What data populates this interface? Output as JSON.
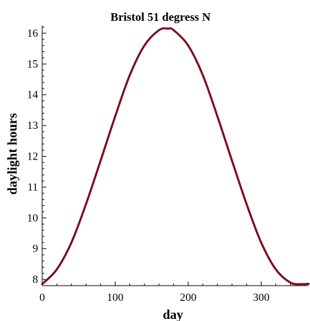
{
  "chart_data": {
    "type": "line",
    "title": "Bristol 51 degress N",
    "xlabel": "day",
    "ylabel": "daylight hours",
    "xlim": [
      0,
      365
    ],
    "ylim": [
      7.8,
      16.2
    ],
    "x_ticks": [
      0,
      100,
      200,
      300
    ],
    "y_ticks": [
      8,
      9,
      10,
      11,
      12,
      13,
      14,
      15,
      16
    ],
    "grid": false,
    "series": [
      {
        "color": "#7a0d1c",
        "x": [
          0,
          20,
          40,
          60,
          80,
          100,
          120,
          140,
          160,
          172,
          180,
          200,
          220,
          240,
          260,
          280,
          300,
          320,
          340,
          355,
          365
        ],
        "y": [
          7.85,
          8.33,
          9.2,
          10.45,
          11.86,
          13.3,
          14.64,
          15.6,
          16.1,
          16.15,
          16.1,
          15.6,
          14.64,
          13.3,
          11.86,
          10.45,
          9.2,
          8.33,
          7.9,
          7.85,
          7.86
        ]
      }
    ]
  }
}
